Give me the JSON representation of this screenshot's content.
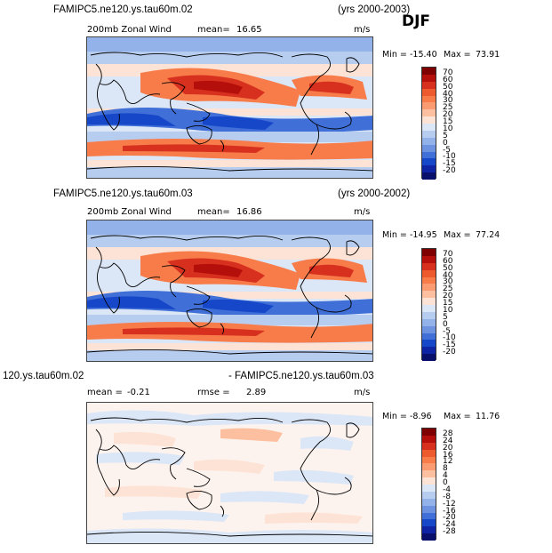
{
  "season": "DJF",
  "panels": [
    {
      "case_title": "FAMIPC5.ne120.ys.tau60m.02",
      "years": "(yrs 2000-2003)",
      "field": "200mb Zonal Wind",
      "mean_label": "mean=",
      "mean_value": "16.65",
      "units": "m/s",
      "min_label": "Min =",
      "min_value": "-15.40",
      "max_label": "Max =",
      "max_value": "73.91",
      "colorbar": {
        "levels": [
          "70",
          "60",
          "50",
          "40",
          "30",
          "25",
          "20",
          "15",
          "10",
          "5",
          "0",
          "-5",
          "-10",
          "-15",
          "-20"
        ],
        "colors": [
          "#7f0000",
          "#b50f0b",
          "#d7301f",
          "#ec5a2d",
          "#f77c4a",
          "#fb9b72",
          "#fcbfa0",
          "#fde3d5",
          "#dbe6f7",
          "#b7cdf0",
          "#93b2ea",
          "#6d92e0",
          "#3f6fd7",
          "#1747c9",
          "#0f23a5",
          "#08106b"
        ]
      }
    },
    {
      "case_title": "FAMIPC5.ne120.ys.tau60m.03",
      "years": "(yrs 2000-2002)",
      "field": "200mb Zonal Wind",
      "mean_label": "mean=",
      "mean_value": "16.86",
      "units": "m/s",
      "min_label": "Min =",
      "min_value": "-14.95",
      "max_label": "Max =",
      "max_value": "77.24",
      "colorbar": {
        "levels": [
          "70",
          "60",
          "50",
          "40",
          "30",
          "25",
          "20",
          "15",
          "10",
          "5",
          "0",
          "-5",
          "-10",
          "-15",
          "-20"
        ],
        "colors": [
          "#7f0000",
          "#b50f0b",
          "#d7301f",
          "#ec5a2d",
          "#f77c4a",
          "#fb9b72",
          "#fcbfa0",
          "#fde3d5",
          "#dbe6f7",
          "#b7cdf0",
          "#93b2ea",
          "#6d92e0",
          "#3f6fd7",
          "#1747c9",
          "#0f23a5",
          "#08106b"
        ]
      }
    },
    {
      "case_title_left": "120.ys.tau60m.02",
      "case_title_right": "- FAMIPC5.ne120.ys.tau60m.03",
      "mean_label": "mean =",
      "mean_value": "-0.21",
      "rmse_label": "rmse =",
      "rmse_value": "2.89",
      "units": "m/s",
      "min_label": "Min =",
      "min_value": "-8.96",
      "max_label": "Max =",
      "max_value": "11.76",
      "colorbar": {
        "levels": [
          "28",
          "24",
          "20",
          "16",
          "12",
          "8",
          "4",
          "0",
          "-4",
          "-8",
          "-12",
          "-16",
          "-20",
          "-24",
          "-28"
        ],
        "colors": [
          "#7f0000",
          "#b50f0b",
          "#d7301f",
          "#ec5a2d",
          "#f77c4a",
          "#fb9b72",
          "#fcbfa0",
          "#fde3d5",
          "#dbe6f7",
          "#b7cdf0",
          "#93b2ea",
          "#6d92e0",
          "#3f6fd7",
          "#1747c9",
          "#0f23a5",
          "#08106b"
        ]
      }
    }
  ]
}
